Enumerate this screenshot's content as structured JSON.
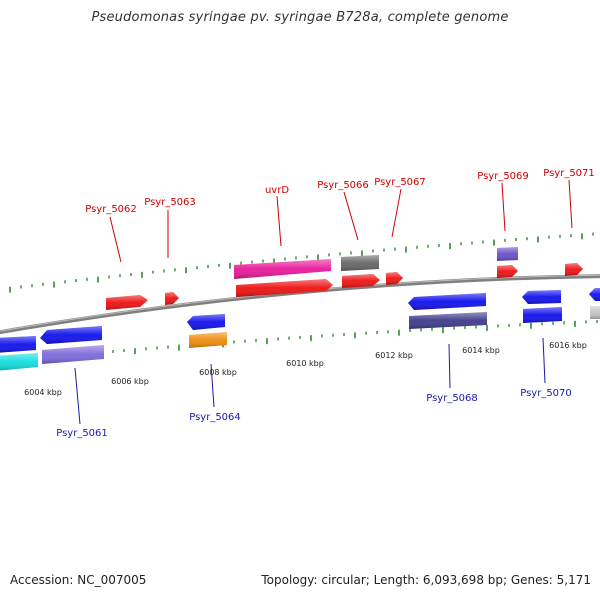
{
  "title": "Pseudomonas syringae pv. syringae B728a, complete genome",
  "footer": {
    "accession": "Accession: NC_007005",
    "topology": "Topology: circular; Length: 6,093,698 bp; Genes: 5,171"
  },
  "colors": {
    "forward_label": "#cc0000",
    "reverse_label": "#1a1aaa",
    "backbone": "#808080",
    "tick": "#2e8b2e"
  },
  "ticks": [
    {
      "label": "6004 kbp",
      "at": 6004
    },
    {
      "label": "6006 kbp",
      "at": 6006
    },
    {
      "label": "6008 kbp",
      "at": 6008
    },
    {
      "label": "6010 kbp",
      "at": 6010
    },
    {
      "label": "6012 kbp",
      "at": 6012
    },
    {
      "label": "6014 kbp",
      "at": 6014
    },
    {
      "label": "6016 kbp",
      "at": 6016
    }
  ],
  "labels_forward": [
    "Psyr_5062",
    "Psyr_5063",
    "uvrD",
    "Psyr_5066",
    "Psyr_5067",
    "Psyr_5069",
    "Psyr_5071"
  ],
  "labels_reverse": [
    "Psyr_5061",
    "Psyr_5064",
    "Psyr_5068",
    "Psyr_5070"
  ]
}
